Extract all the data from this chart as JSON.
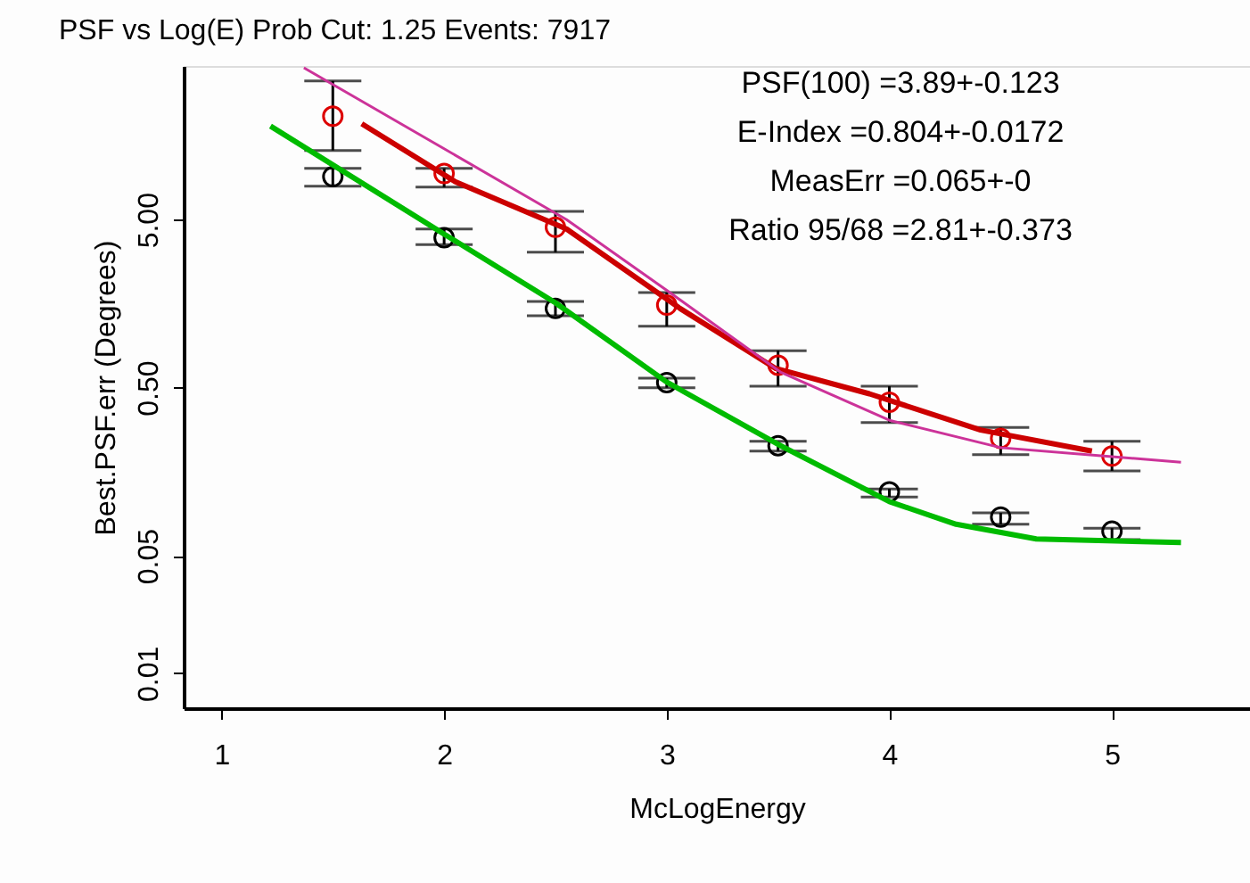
{
  "chart_data": {
    "type": "line",
    "title": "PSF vs Log(E)   Prob Cut: 1.25  Events: 7917",
    "xlabel": "McLogEnergy",
    "ylabel": "Best.PSF.err (Degrees)",
    "annotations": [
      "PSF(100) =3.89+-0.123",
      "E-Index =0.804+-0.0172",
      "MeasErr =0.065+-0",
      "Ratio 95/68 =2.81+-0.373"
    ],
    "xlim": [
      0.83,
      5.62
    ],
    "xticks": [
      1,
      2,
      3,
      4,
      5
    ],
    "ylim": [
      0.0062,
      41
    ],
    "log": "y",
    "yticks": [
      {
        "value": 0.01,
        "label": "0.01"
      },
      {
        "value": 0.05,
        "label": "0.05"
      },
      {
        "value": 0.5,
        "label": "0.50"
      },
      {
        "value": 5,
        "label": "5.00"
      }
    ],
    "series": [
      {
        "type": "scatter",
        "marker": "circle",
        "color": "#dd0000",
        "x": [
          1.5,
          2,
          2.5,
          3,
          3.5,
          4,
          4.5,
          5
        ],
        "values": [
          20.6,
          9.4,
          4.5,
          1.55,
          0.68,
          0.41,
          0.25,
          0.196
        ],
        "errors": [
          [
            12.9,
            33.4
          ],
          [
            7.8,
            10.1
          ],
          [
            3.2,
            5.6
          ],
          [
            1.16,
            1.84
          ],
          [
            0.51,
            0.83
          ],
          [
            0.31,
            0.51
          ],
          [
            0.2,
            0.29
          ],
          [
            0.16,
            0.24
          ]
        ]
      },
      {
        "type": "scatter",
        "marker": "circle",
        "color": "#000000",
        "x": [
          1.5,
          2,
          2.5,
          3,
          3.5,
          4,
          4.5,
          5
        ],
        "values": [
          9.0,
          3.9,
          1.48,
          0.536,
          0.226,
          0.12,
          0.085,
          0.07
        ],
        "errors": [
          [
            7.9,
            10.1
          ],
          [
            3.55,
            4.4
          ],
          [
            1.34,
            1.63
          ],
          [
            0.5,
            0.57
          ],
          [
            0.21,
            0.24
          ],
          [
            0.112,
            0.125
          ],
          [
            0.077,
            0.09
          ],
          [
            0.0625,
            0.073
          ]
        ]
      },
      {
        "marker": "none",
        "color": "#cc0000",
        "x": [
          1.63,
          2.05,
          2.55,
          3.06,
          3.49,
          3.91,
          4.41,
          4.91
        ],
        "values": [
          18.6,
          8.4,
          4.4,
          1.48,
          0.65,
          0.46,
          0.28,
          0.21
        ]
      },
      {
        "marker": "none",
        "color": "#cc3399",
        "x": [
          1.37,
          2.0,
          2.55,
          3.0,
          3.51,
          4.0,
          4.5,
          5.31
        ],
        "values": [
          40,
          13.2,
          5.0,
          1.9,
          0.62,
          0.32,
          0.22,
          0.18
        ]
      },
      {
        "marker": "none",
        "color": "#00bb00",
        "x": [
          1.22,
          2,
          2.5,
          3,
          3.5,
          4,
          4.3,
          4.66,
          5.31
        ],
        "values": [
          18,
          4.1,
          1.6,
          0.54,
          0.23,
          0.105,
          0.077,
          0.063,
          0.06
        ]
      }
    ]
  }
}
